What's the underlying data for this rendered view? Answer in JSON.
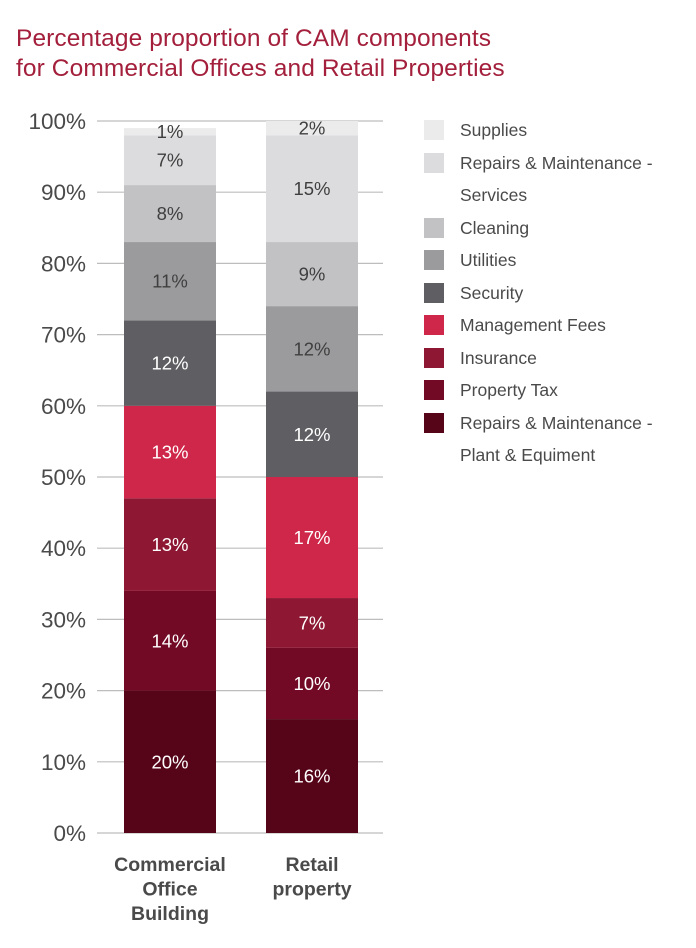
{
  "chart_data": {
    "type": "bar",
    "stacked": true,
    "title_lines": [
      "Percentage proportion of CAM components",
      "for Commercial Offices and Retail Properties"
    ],
    "categories": [
      "Commercial Office Building",
      "Retail property"
    ],
    "category_label_lines": [
      [
        "Commercial",
        "Office",
        "Building"
      ],
      [
        "Retail",
        "property"
      ]
    ],
    "yticks": [
      "0%",
      "10%",
      "20%",
      "30%",
      "40%",
      "50%",
      "60%",
      "70%",
      "80%",
      "90%",
      "100%"
    ],
    "ylim": [
      0,
      100
    ],
    "grid": true,
    "legend_position": "right",
    "series": [
      {
        "name": "Repairs & Maintenance - Plant & Equiment",
        "legend_lines": [
          "Repairs & Maintenance -",
          "Plant & Equiment"
        ],
        "color": "#560518",
        "text_color": "#ffffff",
        "values": [
          20,
          16
        ],
        "labels": [
          "20%",
          "16%"
        ]
      },
      {
        "name": "Property Tax",
        "legend_lines": [
          "Property Tax"
        ],
        "color": "#720a26",
        "text_color": "#ffffff",
        "values": [
          14,
          10
        ],
        "labels": [
          "14%",
          "10%"
        ]
      },
      {
        "name": "Insurance",
        "legend_lines": [
          "Insurance"
        ],
        "color": "#8e1834",
        "text_color": "#ffffff",
        "values": [
          13,
          7
        ],
        "labels": [
          "13%",
          "7%"
        ]
      },
      {
        "name": "Management Fees",
        "legend_lines": [
          "Management Fees"
        ],
        "color": "#cf2749",
        "text_color": "#ffffff",
        "values": [
          13,
          17
        ],
        "labels": [
          "13%",
          "17%"
        ]
      },
      {
        "name": "Security",
        "legend_lines": [
          "Security"
        ],
        "color": "#5f5f63",
        "text_color": "#ffffff",
        "values": [
          12,
          12
        ],
        "labels": [
          "12%",
          "12%"
        ]
      },
      {
        "name": "Utilities",
        "legend_lines": [
          "Utilities"
        ],
        "color": "#9b9b9e",
        "text_color": "#3f3f3f",
        "values": [
          11,
          12
        ],
        "labels": [
          "11%",
          "12%"
        ]
      },
      {
        "name": "Cleaning",
        "legend_lines": [
          "Cleaning"
        ],
        "color": "#c2c2c5",
        "text_color": "#3f3f3f",
        "values": [
          8,
          9
        ],
        "labels": [
          "8%",
          "9%"
        ]
      },
      {
        "name": "Repairs & Maintenance - Services",
        "legend_lines": [
          "Repairs & Maintenance -",
          "Services"
        ],
        "color": "#dcdcde",
        "text_color": "#3f3f3f",
        "values": [
          7,
          15
        ],
        "labels": [
          "7%",
          "15%"
        ]
      },
      {
        "name": "Supplies",
        "legend_lines": [
          "Supplies"
        ],
        "color": "#ebebec",
        "text_color": "#3f3f3f",
        "values": [
          1,
          2
        ],
        "labels": [
          "1%",
          "2%"
        ]
      }
    ]
  }
}
